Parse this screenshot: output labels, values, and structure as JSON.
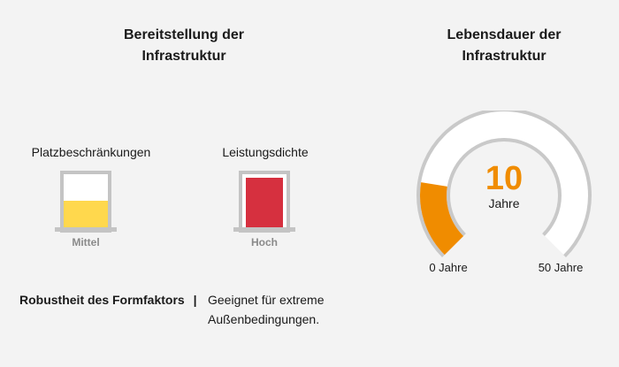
{
  "left_section": {
    "title_line1": "Bereitstellung der",
    "title_line2": "Infrastruktur",
    "space": {
      "label": "Platzbeschränkungen",
      "level": "Mittel",
      "fill_fraction": 0.55,
      "color": "#ffd84d"
    },
    "density": {
      "label": "Leistungsdichte",
      "level": "Hoch",
      "fill_fraction": 1.0,
      "color": "#d6303f"
    },
    "robustness": {
      "label": "Robustheit des Formfaktors",
      "separator": "|",
      "desc_line1": "Geeignet für extreme",
      "desc_line2": "Außenbedingungen."
    }
  },
  "right_section": {
    "title_line1": "Lebensdauer der",
    "title_line2": "Infrastruktur",
    "value": "10",
    "unit": "Jahre",
    "min_label": "0 Jahre",
    "max_label": "50 Jahre",
    "fill_fraction": 0.2,
    "accent_color": "#f08c00"
  }
}
